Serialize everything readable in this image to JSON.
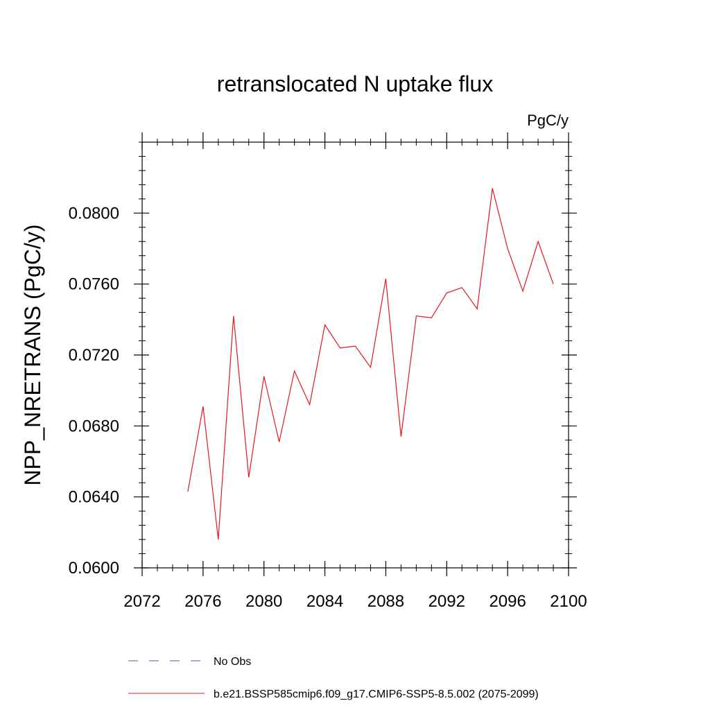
{
  "chart_data": {
    "type": "line",
    "title": "retranslocated N uptake flux",
    "units": "PgC/y",
    "ylabel": "NPP_NRETRANS  (PgC/y)",
    "xlabel": "",
    "xlim": [
      2072,
      2100
    ],
    "ylim": [
      0.06,
      0.084
    ],
    "x_ticks": [
      2072,
      2076,
      2080,
      2084,
      2088,
      2092,
      2096,
      2100
    ],
    "x_tick_labels": [
      "2072",
      "2076",
      "2080",
      "2084",
      "2088",
      "2092",
      "2096",
      "2100"
    ],
    "y_ticks": [
      0.06,
      0.064,
      0.068,
      0.072,
      0.076,
      0.08
    ],
    "y_tick_labels": [
      "0.0600",
      "0.0640",
      "0.0680",
      "0.0720",
      "0.0760",
      "0.0800"
    ],
    "grid": false,
    "legend_position": "bottom",
    "series": [
      {
        "name": "b.e21.BSSP585cmip6.f09_g17.CMIP6-SSP5-8.5.002 (2075-2099)",
        "color": "#e8141c",
        "style": "solid",
        "x": [
          2075,
          2076,
          2077,
          2078,
          2079,
          2080,
          2081,
          2082,
          2083,
          2084,
          2085,
          2086,
          2087,
          2088,
          2089,
          2090,
          2091,
          2092,
          2093,
          2094,
          2095,
          2096,
          2097,
          2098,
          2099
        ],
        "y": [
          0.0643,
          0.0691,
          0.0616,
          0.0742,
          0.0651,
          0.0708,
          0.0671,
          0.0711,
          0.0692,
          0.0737,
          0.0724,
          0.0725,
          0.0713,
          0.0763,
          0.0674,
          0.0742,
          0.0741,
          0.0755,
          0.0758,
          0.0746,
          0.0814,
          0.078,
          0.0756,
          0.0784,
          0.076
        ]
      }
    ],
    "legend": [
      {
        "label": "No Obs",
        "color": "#5555aa",
        "style": "dashed"
      },
      {
        "label": "b.e21.BSSP585cmip6.f09_g17.CMIP6-SSP5-8.5.002 (2075-2099)",
        "color": "#e8141c",
        "style": "solid"
      }
    ]
  }
}
